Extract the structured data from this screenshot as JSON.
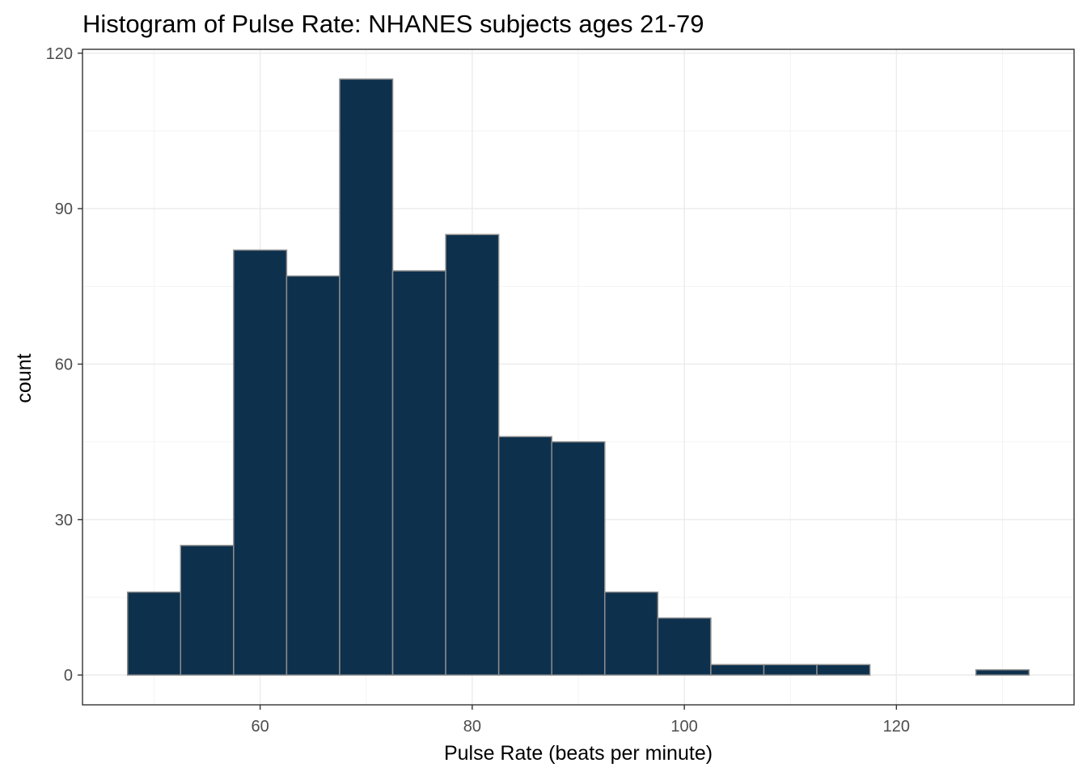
{
  "chart_data": {
    "type": "bar",
    "title": "Histogram of Pulse Rate: NHANES subjects ages 21-79",
    "xlabel": "Pulse Rate (beats per minute)",
    "ylabel": "count",
    "bin_width": 5,
    "bins": [
      {
        "x_start": 47.5,
        "x_end": 52.5,
        "count": 16
      },
      {
        "x_start": 52.5,
        "x_end": 57.5,
        "count": 25
      },
      {
        "x_start": 57.5,
        "x_end": 62.5,
        "count": 82
      },
      {
        "x_start": 62.5,
        "x_end": 67.5,
        "count": 77
      },
      {
        "x_start": 67.5,
        "x_end": 72.5,
        "count": 115
      },
      {
        "x_start": 72.5,
        "x_end": 77.5,
        "count": 78
      },
      {
        "x_start": 77.5,
        "x_end": 82.5,
        "count": 85
      },
      {
        "x_start": 82.5,
        "x_end": 87.5,
        "count": 46
      },
      {
        "x_start": 87.5,
        "x_end": 92.5,
        "count": 45
      },
      {
        "x_start": 92.5,
        "x_end": 97.5,
        "count": 16
      },
      {
        "x_start": 97.5,
        "x_end": 102.5,
        "count": 11
      },
      {
        "x_start": 102.5,
        "x_end": 107.5,
        "count": 2
      },
      {
        "x_start": 107.5,
        "x_end": 112.5,
        "count": 2
      },
      {
        "x_start": 112.5,
        "x_end": 117.5,
        "count": 2
      },
      {
        "x_start": 117.5,
        "x_end": 122.5,
        "count": 0
      },
      {
        "x_start": 122.5,
        "x_end": 127.5,
        "count": 0
      },
      {
        "x_start": 127.5,
        "x_end": 132.5,
        "count": 1
      }
    ],
    "xlim": [
      43.25,
      136.75
    ],
    "ylim": [
      -5.75,
      120.75
    ],
    "x_ticks": [
      60,
      80,
      100,
      120
    ],
    "x_tick_labels": [
      "60",
      "80",
      "100",
      "120"
    ],
    "y_ticks": [
      0,
      30,
      60,
      90,
      120
    ],
    "y_tick_labels": [
      "0",
      "30",
      "60",
      "90",
      "120"
    ],
    "grid": true,
    "legend": "none",
    "colors": {
      "bar_fill": "#0d304d",
      "bar_outline": "#8c8c8c",
      "grid_major": "#ebebeb",
      "grid_minor": "#f2f2f2",
      "panel_border": "#333333",
      "tick_text": "#4d4d4d"
    }
  }
}
